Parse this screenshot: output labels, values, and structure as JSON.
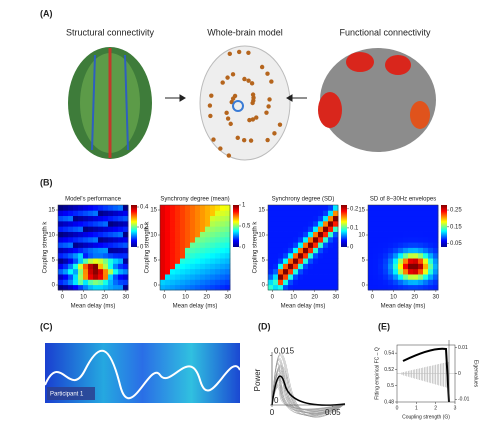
{
  "panel_labels": [
    "(A)",
    "(B)",
    "(C)",
    "(D)",
    "(E)"
  ],
  "a": {
    "titles": [
      "Structural connectivity",
      "Whole-brain model",
      "Functional connectivity"
    ]
  },
  "b": {
    "charts": [
      {
        "title": "Model's performance",
        "xlabel": "Mean delay (ms)",
        "ylabel": "Coupling strength k",
        "xlim": [
          -2,
          31
        ],
        "ylim": [
          -1,
          16
        ],
        "xticks": [
          0,
          10,
          20,
          30
        ],
        "yticks": [
          0,
          5,
          10,
          15
        ],
        "clim": [
          0,
          0.42
        ],
        "cticks": [
          0,
          0.2,
          0.4
        ]
      },
      {
        "title": "Synchrony degree (mean)",
        "xlabel": "Mean delay (ms)",
        "ylabel": "Coupling strength k",
        "xlim": [
          -2,
          31
        ],
        "ylim": [
          -1,
          16
        ],
        "xticks": [
          0,
          10,
          20,
          30
        ],
        "yticks": [
          0,
          5,
          10,
          15
        ],
        "clim": [
          0,
          1
        ],
        "cticks": [
          0,
          0.5,
          1
        ]
      },
      {
        "title": "Synchrony degree (SD)",
        "xlabel": "Mean delay (ms)",
        "ylabel": "Coupling strength k",
        "xlim": [
          -2,
          31
        ],
        "ylim": [
          -1,
          16
        ],
        "xticks": [
          0,
          10,
          20,
          30
        ],
        "yticks": [
          0,
          5,
          10,
          15
        ],
        "clim": [
          0,
          0.22
        ],
        "cticks": [
          0,
          0.1,
          0.2
        ]
      },
      {
        "title": "SD of 8–30Hz envelopes",
        "xlabel": "Mean delay (ms)",
        "xlim": [
          -2,
          31
        ],
        "ylim": [
          -1,
          16
        ],
        "xticks": [
          0,
          10,
          20,
          30
        ],
        "yticks": [
          0,
          5,
          10,
          15
        ],
        "clim": [
          0.03,
          0.28
        ],
        "cticks": [
          0.05,
          0.15,
          0.25
        ]
      }
    ]
  },
  "c": {
    "label": "Participant 1"
  },
  "d": {
    "ylabel": "Power",
    "xlim": [
      0,
      0.06
    ],
    "ylim": [
      0,
      0.016
    ],
    "xticks": [
      0,
      0.05
    ],
    "yticks": [
      0,
      0.015
    ]
  },
  "e": {
    "xlabel": "Coupling strength (G)",
    "ylabel": "Fitting empirical FC – Q",
    "y2label": "Eigenvalues",
    "xlim": [
      0,
      3
    ],
    "ylim": [
      0.48,
      0.55
    ],
    "y2lim": [
      -0.011,
      0.011
    ],
    "xticks": [
      0,
      1,
      2,
      3
    ],
    "yticks": [
      0.48,
      0.5,
      0.52,
      0.54
    ],
    "y2ticks": [
      -0.01,
      0,
      0.01
    ]
  }
}
